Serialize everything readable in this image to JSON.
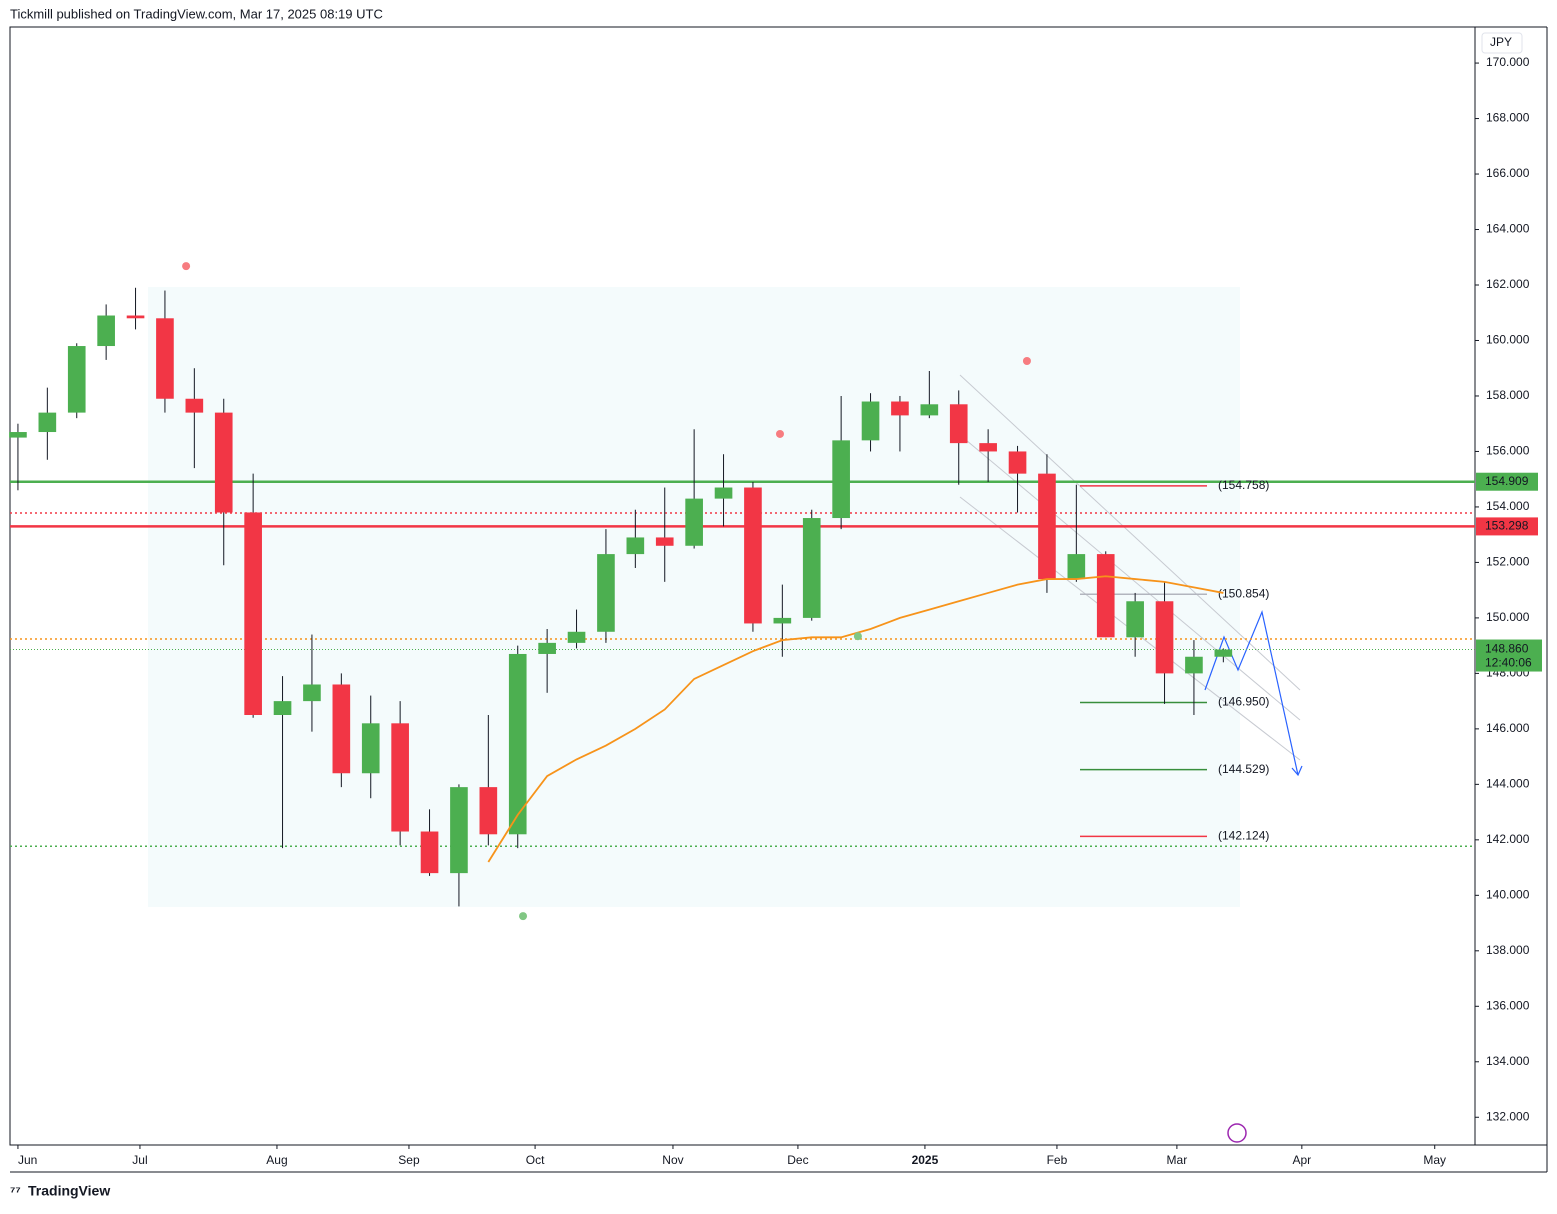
{
  "header": {
    "title": "Tickmill published on TradingView.com, Mar 17, 2025 08:19 UTC"
  },
  "footer": {
    "brand": "TradingView"
  },
  "chart_data": {
    "type": "candlestick",
    "currency": "JPY",
    "xlim": [
      -0.27,
      49.56
    ],
    "ylim": [
      131.0,
      171.3
    ],
    "xticks": [
      {
        "value": 0,
        "label": "Jun"
      },
      {
        "value": 4.15,
        "label": "Jul"
      },
      {
        "value": 8.81,
        "label": "Aug"
      },
      {
        "value": 13.3,
        "label": "Sep"
      },
      {
        "value": 17.59,
        "label": "Oct"
      },
      {
        "value": 22.28,
        "label": "Nov"
      },
      {
        "value": 26.53,
        "label": "Dec"
      },
      {
        "value": 30.85,
        "label": "2025"
      },
      {
        "value": 35.34,
        "label": "Feb"
      },
      {
        "value": 39.42,
        "label": "Mar"
      },
      {
        "value": 43.67,
        "label": "Apr"
      },
      {
        "value": 48.19,
        "label": "May"
      }
    ],
    "yticks": [
      {
        "value": 132,
        "label": "132.000"
      },
      {
        "value": 134,
        "label": "134.000"
      },
      {
        "value": 136,
        "label": "136.000"
      },
      {
        "value": 138,
        "label": "138.000"
      },
      {
        "value": 140,
        "label": "140.000"
      },
      {
        "value": 142,
        "label": "142.000"
      },
      {
        "value": 144,
        "label": "144.000"
      },
      {
        "value": 146,
        "label": "146.000"
      },
      {
        "value": 148,
        "label": "148.000"
      },
      {
        "value": 150,
        "label": "150.000"
      },
      {
        "value": 152,
        "label": "152.000"
      },
      {
        "value": 154,
        "label": "154.000"
      },
      {
        "value": 156,
        "label": "156.000"
      },
      {
        "value": 158,
        "label": "158.000"
      },
      {
        "value": 160,
        "label": "160.000"
      },
      {
        "value": 162,
        "label": "162.000"
      },
      {
        "value": 164,
        "label": "164.000"
      },
      {
        "value": 166,
        "label": "166.000"
      },
      {
        "value": 168,
        "label": "168.000"
      },
      {
        "value": 170,
        "label": "170.000"
      }
    ],
    "up_color": "#4caf50",
    "down_color": "#f23645",
    "open": [
      156.5,
      156.7,
      157.4,
      159.8,
      160.9,
      160.8,
      157.9,
      157.4,
      153.8,
      146.5,
      147.0,
      147.6,
      144.4,
      146.2,
      142.3,
      140.8,
      143.9,
      142.2,
      148.7,
      149.1,
      149.5,
      152.3,
      152.9,
      152.6,
      154.3,
      154.7,
      149.8,
      150.0,
      153.6,
      156.4,
      157.8,
      157.3,
      157.7,
      156.3,
      156.0,
      155.2,
      151.4,
      152.3,
      149.3,
      150.6,
      148.0,
      148.6
    ],
    "high": [
      157.0,
      158.3,
      159.9,
      161.3,
      161.9,
      161.8,
      159.0,
      157.9,
      155.2,
      147.9,
      149.4,
      148.0,
      147.2,
      147.0,
      143.1,
      144.0,
      146.5,
      149.0,
      149.6,
      150.3,
      153.2,
      153.9,
      154.7,
      156.8,
      155.9,
      154.9,
      151.2,
      153.9,
      158.0,
      158.1,
      158.0,
      158.9,
      158.2,
      156.8,
      156.2,
      155.9,
      154.8,
      152.4,
      150.9,
      151.3,
      149.2,
      148.9
    ],
    "low": [
      154.6,
      155.7,
      157.2,
      159.3,
      160.4,
      157.4,
      155.4,
      151.9,
      146.4,
      141.7,
      145.9,
      143.9,
      143.5,
      141.8,
      140.7,
      139.6,
      141.8,
      141.7,
      147.3,
      148.9,
      149.1,
      151.8,
      151.3,
      152.5,
      153.3,
      149.5,
      148.6,
      149.9,
      153.2,
      156.0,
      156.0,
      157.2,
      154.8,
      154.9,
      153.8,
      150.9,
      151.3,
      149.3,
      148.6,
      146.9,
      146.5,
      148.4
    ],
    "close": [
      156.7,
      157.4,
      159.8,
      160.9,
      160.8,
      157.9,
      157.4,
      153.8,
      146.5,
      147.0,
      147.6,
      144.4,
      146.2,
      142.3,
      140.8,
      143.9,
      142.2,
      148.7,
      149.1,
      149.5,
      152.3,
      152.9,
      152.6,
      154.3,
      154.7,
      149.8,
      150.0,
      153.6,
      156.4,
      157.8,
      157.3,
      157.7,
      156.3,
      156.0,
      155.2,
      151.4,
      152.3,
      149.3,
      150.6,
      148.0,
      148.6,
      148.86
    ],
    "moving_average": {
      "color": "#f7931a",
      "values": [
        null,
        null,
        null,
        null,
        null,
        null,
        null,
        null,
        null,
        null,
        null,
        null,
        null,
        null,
        null,
        null,
        141.2,
        142.9,
        144.3,
        144.9,
        145.4,
        146.0,
        146.7,
        147.8,
        148.3,
        148.8,
        149.2,
        149.3,
        149.3,
        149.6,
        150.0,
        150.3,
        150.6,
        150.9,
        151.2,
        151.4,
        151.4,
        151.5,
        151.4,
        151.3,
        151.1,
        150.9
      ]
    },
    "price_levels": [
      {
        "value": 154.909,
        "label": "154.909",
        "color": "#4caf50"
      },
      {
        "value": 153.298,
        "label": "153.298",
        "color": "#f23645"
      }
    ],
    "last_price": {
      "value": 148.86,
      "label": "148.860",
      "countdown": "12:40:06",
      "color": "#4caf50"
    },
    "dotted_levels": [
      {
        "value": 153.78,
        "color": "#f23645"
      },
      {
        "value": 149.24,
        "color": "#f7931a"
      },
      {
        "value": 141.77,
        "color": "#4caf50"
      }
    ],
    "fib_levels": [
      {
        "value": 154.758,
        "label": "(154.758)",
        "color": "#f23645"
      },
      {
        "value": 150.854,
        "label": "(150.854)",
        "color": "#b2b5be"
      },
      {
        "value": 146.95,
        "label": "(146.950)",
        "color": "#388e3c"
      },
      {
        "value": 144.529,
        "label": "(144.529)",
        "color": "#388e3c"
      },
      {
        "value": 142.124,
        "label": "(142.124)",
        "color": "#f23645"
      }
    ],
    "pivots": [
      {
        "x": 5.72,
        "value": 162.68,
        "color": "#f77c80"
      },
      {
        "x": 25.92,
        "value": 156.63,
        "color": "#f77c80"
      },
      {
        "x": 34.32,
        "value": 159.26,
        "color": "#f77c80"
      },
      {
        "x": 17.18,
        "value": 139.25,
        "color": "#81c784"
      },
      {
        "x": 28.57,
        "value": 149.34,
        "color": "#81c784"
      }
    ]
  }
}
